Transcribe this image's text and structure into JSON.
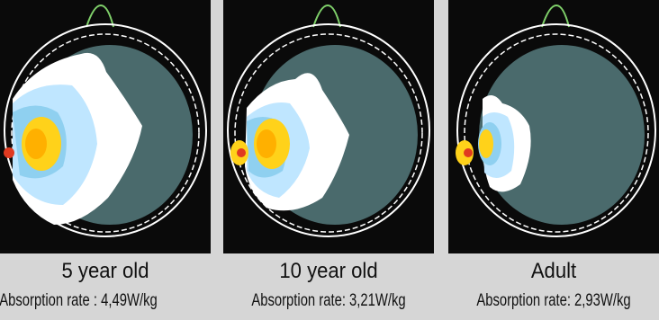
{
  "panels": [
    {
      "title": "5 year old",
      "rate": "Absorption rate : 4,49W/kg"
    },
    {
      "title": "10 year old",
      "rate": "Absorption rate: 3,21W/kg"
    },
    {
      "title": "Adult",
      "rate": "Absorption rate: 2,93W/kg"
    }
  ],
  "colors": {
    "background": "#d6d6d6",
    "panel": "#0a0a0a",
    "head_tissue": "#4a6a6c",
    "outline": "#ffffff",
    "ear_outline": "#7fd06a",
    "high": "#ffd21a",
    "mid": "#bfe6ff",
    "low": "#ffffff",
    "source": "#e03a20"
  }
}
